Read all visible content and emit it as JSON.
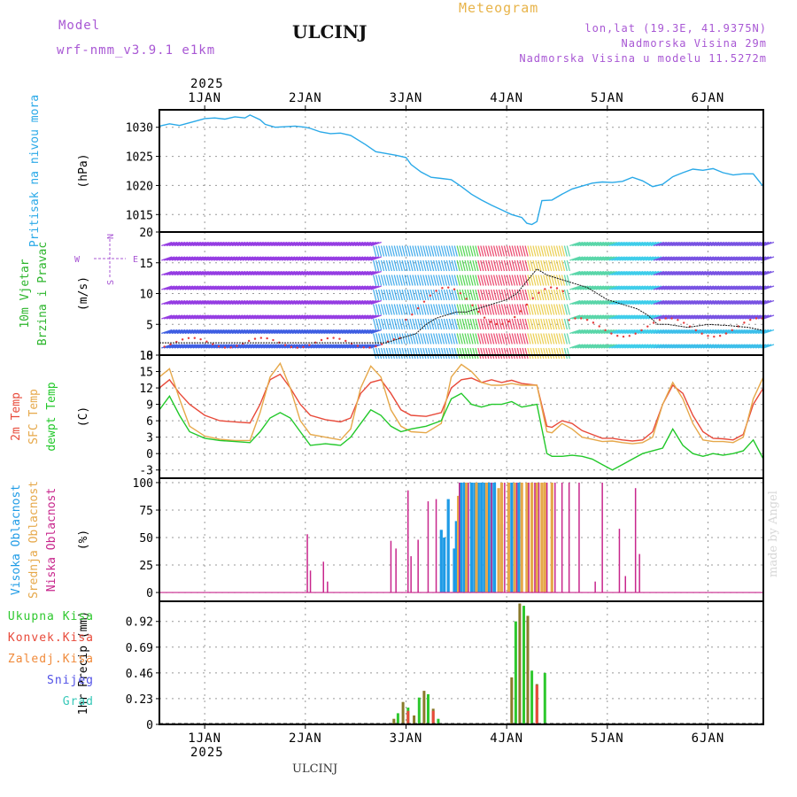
{
  "header": {
    "station": "ULCINJ",
    "title": "Meteogram",
    "model_label": "Model",
    "model_name": "wrf-nmm_v3.9.1 e1km",
    "lonlat": "lon,lat (19.3E, 41.9375N)",
    "elevation": "Nadmorska Visina 29m",
    "model_elevation": "Nadmorska Visina u modelu 11.5272m"
  },
  "footer": {
    "station": "ULCINJ",
    "credit": "made by Angel"
  },
  "time_axis": {
    "year": "2025",
    "days": [
      "1JAN",
      "2JAN",
      "3JAN",
      "4JAN",
      "5JAN",
      "6JAN"
    ],
    "start_day": 0.55,
    "end_day": 6.55
  },
  "chart_data": [
    {
      "type": "line",
      "panel": "pressure",
      "labels": [
        "Pritisak na nivou mora"
      ],
      "unit": "(hPa)",
      "ylim": [
        1012,
        1033
      ],
      "yticks": [
        1015,
        1020,
        1025,
        1030
      ],
      "colors": [
        "#2aa9e8"
      ],
      "series": [
        {
          "x": [
            0.55,
            0.65,
            0.75,
            0.9,
            1.0,
            1.1,
            1.2,
            1.3,
            1.4,
            1.45,
            1.55,
            1.6,
            1.7,
            1.8,
            1.9,
            2.0,
            2.05,
            2.15,
            2.25,
            2.35,
            2.45,
            2.6,
            2.7,
            2.8,
            2.9,
            3.0,
            3.05,
            3.15,
            3.25,
            3.35,
            3.45,
            3.55,
            3.65,
            3.75,
            3.85,
            3.95,
            4.05,
            4.15,
            4.2,
            4.25,
            4.3,
            4.35,
            4.45,
            4.55,
            4.65,
            4.75,
            4.85,
            4.95,
            5.05,
            5.15,
            5.25,
            5.35,
            5.45,
            5.55,
            5.65,
            5.75,
            5.85,
            5.95,
            6.05,
            6.15,
            6.25,
            6.35,
            6.45,
            6.55
          ],
          "y": [
            1030.2,
            1030.6,
            1030.3,
            1031,
            1031.5,
            1031.6,
            1031.4,
            1031.8,
            1031.6,
            1032.1,
            1031.3,
            1030.5,
            1030,
            1030.1,
            1030.2,
            1030,
            1029.8,
            1029.2,
            1028.9,
            1029,
            1028.6,
            1027,
            1025.8,
            1025.5,
            1025.2,
            1024.8,
            1023.6,
            1022.3,
            1021.4,
            1021.2,
            1021,
            1019.8,
            1018.5,
            1017.5,
            1016.6,
            1015.8,
            1015,
            1014.5,
            1013.5,
            1013.3,
            1013.8,
            1017.4,
            1017.5,
            1018.5,
            1019.4,
            1019.9,
            1020.4,
            1020.6,
            1020.5,
            1020.7,
            1021.4,
            1020.8,
            1019.8,
            1020.2,
            1021.5,
            1022.2,
            1022.8,
            1022.6,
            1022.9,
            1022.2,
            1021.8,
            1022,
            1022,
            1019.8
          ]
        }
      ]
    },
    {
      "type": "line",
      "panel": "wind",
      "labels": [
        "10m Vjetar",
        "Brzina i Pravac"
      ],
      "unit": "(m/s)",
      "compass": {
        "n": "N",
        "s": "S",
        "w": "W",
        "e": "E"
      },
      "ylim": [
        0,
        20
      ],
      "yticks": [
        0,
        5,
        10,
        15,
        20
      ],
      "colors": [
        "#2bb52b",
        "#9b30ff",
        "#e83a3a",
        "#111111"
      ],
      "series": [
        {
          "x": [
            0.55,
            1.0,
            1.5,
            2.0,
            2.5,
            2.8,
            2.9,
            3.0,
            3.1,
            3.2,
            3.3,
            3.4,
            3.5,
            3.6,
            3.7,
            3.8,
            3.9,
            4.0,
            4.1,
            4.2,
            4.3,
            4.4,
            4.5,
            4.6,
            4.7,
            4.8,
            4.9,
            5.0,
            5.1,
            5.2,
            5.3,
            5.4,
            5.5,
            5.6,
            5.8,
            6.0,
            6.2,
            6.4,
            6.55
          ],
          "y": [
            2,
            2,
            2,
            2,
            2,
            2,
            2.5,
            3,
            3.5,
            5,
            6,
            6.5,
            7,
            7,
            7.5,
            8,
            8.5,
            9,
            10,
            12,
            14,
            13,
            12.5,
            12,
            11.5,
            11,
            10,
            9,
            8.5,
            8,
            7.5,
            6.5,
            5,
            5,
            4.5,
            5,
            4.8,
            4.5,
            4
          ]
        }
      ]
    },
    {
      "type": "line",
      "panel": "temperature",
      "labels": [
        "2m Temp",
        "SFC Temp",
        "dewpt Temp"
      ],
      "unit": "(C)",
      "ylim": [
        -4.5,
        18
      ],
      "yticks": [
        -3,
        0,
        3,
        6,
        9,
        12,
        15,
        18
      ],
      "colors": [
        "#e84a3a",
        "#e6a84a",
        "#22c82a"
      ],
      "series": [
        {
          "name": "2m Temp",
          "x": [
            0.55,
            0.65,
            0.75,
            0.85,
            1.0,
            1.15,
            1.3,
            1.45,
            1.55,
            1.65,
            1.75,
            1.85,
            1.95,
            2.05,
            2.2,
            2.35,
            2.45,
            2.55,
            2.65,
            2.75,
            2.85,
            2.95,
            3.05,
            3.2,
            3.35,
            3.45,
            3.55,
            3.65,
            3.75,
            3.85,
            3.95,
            4.05,
            4.15,
            4.3,
            4.4,
            4.45,
            4.55,
            4.65,
            4.75,
            4.85,
            4.95,
            5.05,
            5.15,
            5.25,
            5.35,
            5.45,
            5.55,
            5.65,
            5.75,
            5.85,
            5.95,
            6.05,
            6.15,
            6.25,
            6.35,
            6.45,
            6.55
          ],
          "y": [
            12,
            13.5,
            11,
            9,
            7,
            6,
            5.8,
            5.6,
            9,
            13.5,
            14.5,
            12,
            9,
            7,
            6.2,
            5.8,
            6.5,
            11,
            13,
            13.5,
            11,
            8,
            7,
            6.8,
            7.5,
            12,
            13.5,
            13.8,
            13,
            13.5,
            13,
            13.4,
            12.8,
            12.5,
            5,
            4.8,
            6,
            5.5,
            4.2,
            3.5,
            2.8,
            2.8,
            2.5,
            2.3,
            2.5,
            4,
            9,
            12.5,
            11,
            7,
            4,
            2.8,
            2.7,
            2.5,
            3.5,
            9,
            12
          ]
        },
        {
          "name": "SFC Temp",
          "x": [
            0.55,
            0.65,
            0.75,
            0.85,
            1.0,
            1.15,
            1.3,
            1.45,
            1.55,
            1.65,
            1.75,
            1.85,
            1.95,
            2.05,
            2.2,
            2.35,
            2.45,
            2.55,
            2.65,
            2.75,
            2.85,
            2.95,
            3.05,
            3.2,
            3.35,
            3.45,
            3.55,
            3.65,
            3.75,
            3.85,
            3.95,
            4.05,
            4.15,
            4.3,
            4.4,
            4.45,
            4.55,
            4.65,
            4.75,
            4.85,
            4.95,
            5.05,
            5.15,
            5.25,
            5.35,
            5.45,
            5.55,
            5.65,
            5.75,
            5.85,
            5.95,
            6.05,
            6.15,
            6.25,
            6.35,
            6.45,
            6.55
          ],
          "y": [
            14,
            15.5,
            10,
            5,
            3.2,
            2.6,
            2.4,
            2.4,
            7.5,
            14,
            16.5,
            12,
            6,
            3.5,
            3,
            2.5,
            4.5,
            12,
            16,
            14,
            8,
            5,
            4,
            3.8,
            5.5,
            14,
            16.3,
            15,
            13,
            12.5,
            12.5,
            12.8,
            12.5,
            12.5,
            4,
            3.8,
            5.5,
            4.5,
            3,
            2.6,
            2.2,
            2.3,
            2,
            1.8,
            2,
            3,
            9,
            13,
            10,
            5.5,
            2.5,
            2.2,
            2.2,
            2,
            3,
            10,
            14
          ]
        },
        {
          "name": "dewpt Temp",
          "x": [
            0.55,
            0.65,
            0.75,
            0.85,
            1.0,
            1.15,
            1.3,
            1.45,
            1.55,
            1.65,
            1.75,
            1.85,
            1.95,
            2.05,
            2.2,
            2.35,
            2.45,
            2.55,
            2.65,
            2.75,
            2.85,
            2.95,
            3.05,
            3.2,
            3.35,
            3.45,
            3.55,
            3.65,
            3.75,
            3.85,
            3.95,
            4.05,
            4.15,
            4.3,
            4.4,
            4.45,
            4.55,
            4.65,
            4.75,
            4.85,
            4.95,
            5.05,
            5.15,
            5.25,
            5.35,
            5.45,
            5.55,
            5.65,
            5.75,
            5.85,
            5.95,
            6.05,
            6.15,
            6.25,
            6.35,
            6.45,
            6.55
          ],
          "y": [
            8,
            10.5,
            7,
            4,
            2.8,
            2.4,
            2.2,
            2,
            4,
            6.5,
            7.5,
            6.5,
            4,
            1.5,
            1.8,
            1.5,
            3,
            5.5,
            8,
            7,
            5,
            4,
            4.5,
            5,
            6,
            10,
            11,
            9,
            8.5,
            9,
            9,
            9.5,
            8.5,
            9,
            0,
            -0.5,
            -0.5,
            -0.3,
            -0.5,
            -1,
            -2,
            -3,
            -2,
            -1,
            0,
            0.5,
            1,
            4.5,
            1.5,
            0,
            -0.5,
            0,
            -0.3,
            0,
            0.5,
            2.5,
            -1
          ]
        }
      ]
    },
    {
      "type": "bar",
      "panel": "clouds",
      "labels": [
        "Visoka Oblacnost",
        "Srednja Oblacnost",
        "Niska Oblacnost"
      ],
      "unit": "(%)",
      "ylim": [
        -8,
        104
      ],
      "yticks": [
        0,
        25,
        50,
        75,
        100
      ],
      "colors": [
        "#1e9be6",
        "#e6a84a",
        "#c8268c"
      ],
      "series": [
        {
          "name": "Visoka Oblacnost",
          "x": [
            3.35,
            3.38,
            3.42,
            3.48,
            3.5,
            3.55,
            3.58,
            3.6,
            3.65,
            3.68,
            3.72,
            3.75,
            3.78,
            3.82,
            3.85,
            3.88,
            3.95,
            4.05,
            4.12
          ],
          "y": [
            57,
            50,
            85,
            40,
            65,
            100,
            100,
            100,
            100,
            100,
            100,
            100,
            100,
            100,
            100,
            100,
            62,
            100,
            100
          ]
        },
        {
          "name": "Srednja Oblacnost",
          "x": [
            3.52,
            3.6,
            3.7,
            3.8,
            3.92,
            3.95,
            4.02,
            4.08,
            4.15,
            4.2,
            4.25,
            4.3,
            4.35,
            4.38,
            4.45
          ],
          "y": [
            88,
            100,
            100,
            100,
            95,
            100,
            100,
            100,
            100,
            100,
            100,
            100,
            100,
            100,
            100
          ]
        },
        {
          "name": "Niska Oblacnost",
          "x": [
            2.02,
            2.05,
            2.18,
            2.22,
            2.85,
            2.9,
            3.02,
            3.05,
            3.12,
            3.22,
            3.3,
            3.53,
            3.62,
            3.85,
            3.98,
            4.1,
            4.22,
            4.28,
            4.32,
            4.4,
            4.48,
            4.55,
            4.62,
            4.72,
            4.88,
            4.95,
            5.12,
            5.18,
            5.28,
            5.32
          ],
          "y": [
            53,
            20,
            28,
            10,
            47,
            40,
            93,
            33,
            48,
            83,
            85,
            100,
            100,
            100,
            100,
            100,
            100,
            100,
            100,
            100,
            100,
            100,
            100,
            100,
            10,
            100,
            58,
            15,
            95,
            35
          ]
        }
      ]
    },
    {
      "type": "bar",
      "panel": "precipitation",
      "labels": [
        "Ukupna Kisa",
        "Konvek.Kisa",
        "Zaledj.Kisa",
        "Snijeg",
        "Grad"
      ],
      "unit": "1hr Precip (mm)",
      "ylim": [
        0,
        1.1
      ],
      "yticks": [
        0,
        0.23,
        0.46,
        0.69,
        0.92
      ],
      "colors": [
        "#2ec82e",
        "#e84a3a",
        "#f08a3a",
        "#5050e6",
        "#36c8b8",
        "#8a7a2a"
      ],
      "series": [
        {
          "name": "Ukupna Kisa",
          "x": [
            2.88,
            2.92,
            2.97,
            3.02,
            3.08,
            3.13,
            3.18,
            3.22,
            3.27,
            3.32,
            4.05,
            4.09,
            4.13,
            4.17,
            4.21,
            4.25,
            4.3,
            4.38
          ],
          "y": [
            0.05,
            0.1,
            0.2,
            0.15,
            0.08,
            0.24,
            0.3,
            0.27,
            0.14,
            0.05,
            0.42,
            0.92,
            1.08,
            1.06,
            0.97,
            0.48,
            0.36,
            0.46
          ]
        },
        {
          "name": "Konvek.Kisa",
          "x": [
            3.02,
            3.27,
            4.3
          ],
          "y": [
            0.12,
            0.12,
            0.35
          ]
        }
      ]
    }
  ]
}
